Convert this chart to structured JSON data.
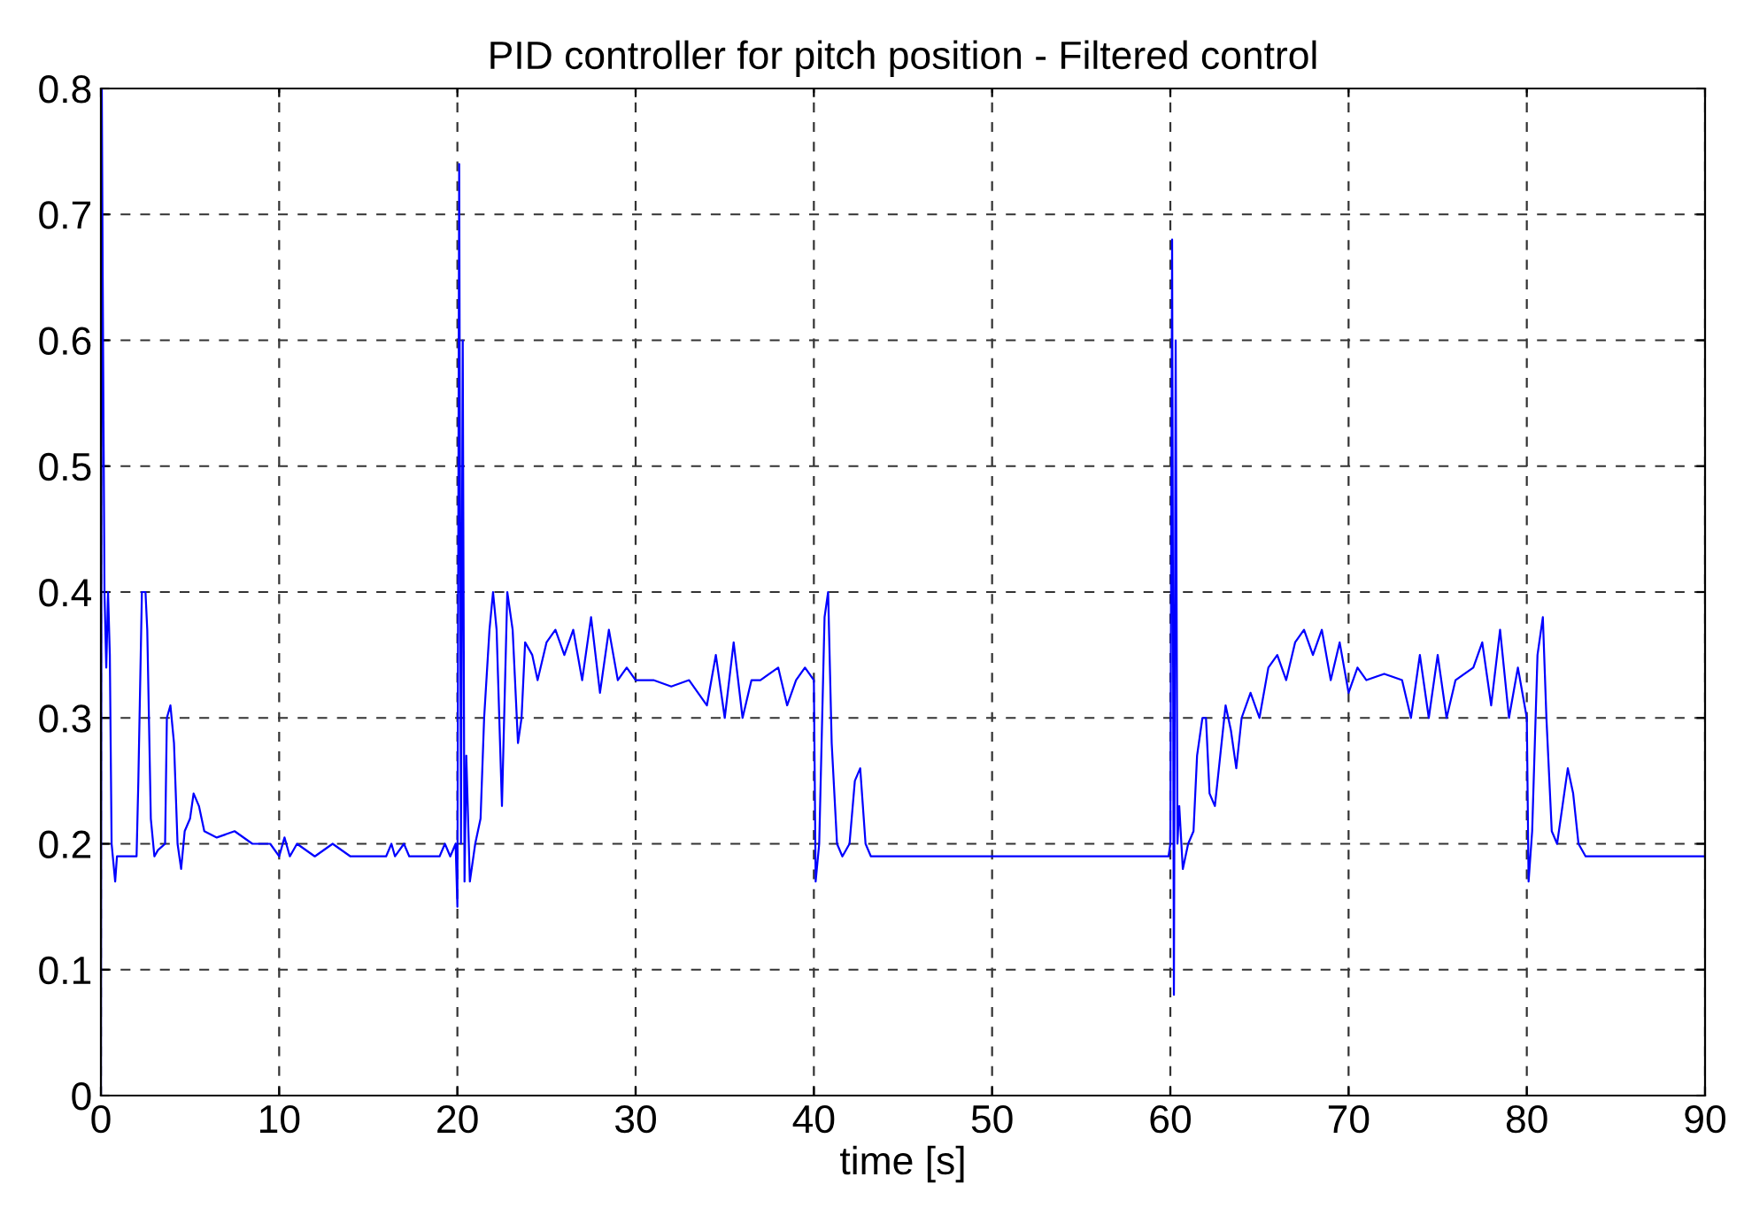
{
  "chart_data": {
    "type": "line",
    "title": "PID controller for pitch position - Filtered control",
    "xlabel": "time [s]",
    "xlim": [
      0,
      90
    ],
    "xticks": [
      0,
      10,
      20,
      30,
      40,
      50,
      60,
      70,
      80,
      90
    ],
    "ylim": [
      0,
      0.8
    ],
    "yticks": [
      0,
      0.1,
      0.2,
      0.3,
      0.4,
      0.5,
      0.6,
      0.7,
      0.8
    ],
    "grid": true,
    "line_style": "solid",
    "marker": "none",
    "series": [
      {
        "color": "#0000ff",
        "x": [
          0,
          0.05,
          0.1,
          0.2,
          0.3,
          0.4,
          0.5,
          0.6,
          0.8,
          0.9,
          2.0,
          2.1,
          2.3,
          2.5,
          2.6,
          2.8,
          3.0,
          3.2,
          3.6,
          3.7,
          3.9,
          4.1,
          4.3,
          4.5,
          4.7,
          5.0,
          5.2,
          5.5,
          5.8,
          6.5,
          7.5,
          8.5,
          9.5,
          10,
          10.3,
          10.6,
          11,
          12,
          13,
          14,
          16,
          16.3,
          16.5,
          17,
          17.3,
          19,
          19.3,
          19.6,
          19.9,
          20.0,
          20.1,
          20.2,
          20.3,
          20.4,
          20.5,
          20.7,
          21.0,
          21.3,
          21.5,
          21.8,
          22.0,
          22.2,
          22.5,
          22.8,
          23.1,
          23.4,
          23.6,
          23.8,
          24.2,
          24.5,
          25,
          25.5,
          26,
          26.5,
          27,
          27.5,
          28,
          28.5,
          29,
          29.5,
          30,
          31,
          32,
          33,
          34,
          34.5,
          35,
          35.5,
          36,
          36.5,
          37,
          38,
          38.5,
          39,
          39.5,
          40.0,
          40.1,
          40.3,
          40.6,
          40.8,
          41.0,
          41.3,
          41.6,
          42.0,
          42.3,
          42.6,
          42.9,
          43.2,
          59.9,
          60.0,
          60.1,
          60.2,
          60.3,
          60.4,
          60.5,
          60.7,
          61,
          61.3,
          61.5,
          61.8,
          62.0,
          62.2,
          62.5,
          62.8,
          63.1,
          63.4,
          63.7,
          64,
          64.5,
          65,
          65.5,
          66,
          66.5,
          67,
          67.5,
          68,
          68.5,
          69,
          69.5,
          70,
          70.5,
          71,
          72,
          73,
          73.5,
          74,
          74.5,
          75,
          75.5,
          76,
          77,
          77.5,
          78,
          78.5,
          79,
          79.5,
          80,
          80.1,
          80.3,
          80.6,
          80.9,
          81.1,
          81.4,
          81.7,
          82.0,
          82.3,
          82.6,
          82.9,
          83.3,
          90
        ],
        "values": [
          0,
          0.8,
          0.65,
          0.4,
          0.34,
          0.4,
          0.35,
          0.2,
          0.17,
          0.19,
          0.19,
          0.25,
          0.4,
          0.4,
          0.37,
          0.22,
          0.19,
          0.195,
          0.2,
          0.3,
          0.31,
          0.28,
          0.2,
          0.18,
          0.21,
          0.22,
          0.24,
          0.23,
          0.21,
          0.205,
          0.21,
          0.2,
          0.2,
          0.19,
          0.205,
          0.19,
          0.2,
          0.19,
          0.2,
          0.19,
          0.19,
          0.2,
          0.19,
          0.2,
          0.19,
          0.19,
          0.2,
          0.19,
          0.2,
          0.15,
          0.74,
          0.2,
          0.6,
          0.17,
          0.27,
          0.17,
          0.2,
          0.22,
          0.3,
          0.37,
          0.4,
          0.37,
          0.23,
          0.4,
          0.37,
          0.28,
          0.3,
          0.36,
          0.35,
          0.33,
          0.36,
          0.37,
          0.35,
          0.37,
          0.33,
          0.38,
          0.32,
          0.37,
          0.33,
          0.34,
          0.33,
          0.33,
          0.325,
          0.33,
          0.31,
          0.35,
          0.3,
          0.36,
          0.3,
          0.33,
          0.33,
          0.34,
          0.31,
          0.33,
          0.34,
          0.33,
          0.17,
          0.2,
          0.38,
          0.4,
          0.28,
          0.2,
          0.19,
          0.2,
          0.25,
          0.26,
          0.2,
          0.19,
          0.19,
          0.2,
          0.68,
          0.08,
          0.6,
          0.2,
          0.23,
          0.18,
          0.2,
          0.21,
          0.27,
          0.3,
          0.3,
          0.24,
          0.23,
          0.27,
          0.31,
          0.29,
          0.26,
          0.3,
          0.32,
          0.3,
          0.34,
          0.35,
          0.33,
          0.36,
          0.37,
          0.35,
          0.37,
          0.33,
          0.36,
          0.32,
          0.34,
          0.33,
          0.335,
          0.33,
          0.3,
          0.35,
          0.3,
          0.35,
          0.3,
          0.33,
          0.34,
          0.36,
          0.31,
          0.37,
          0.3,
          0.34,
          0.3,
          0.17,
          0.21,
          0.35,
          0.38,
          0.3,
          0.21,
          0.2,
          0.23,
          0.26,
          0.24,
          0.2,
          0.19,
          0.19
        ]
      }
    ]
  }
}
